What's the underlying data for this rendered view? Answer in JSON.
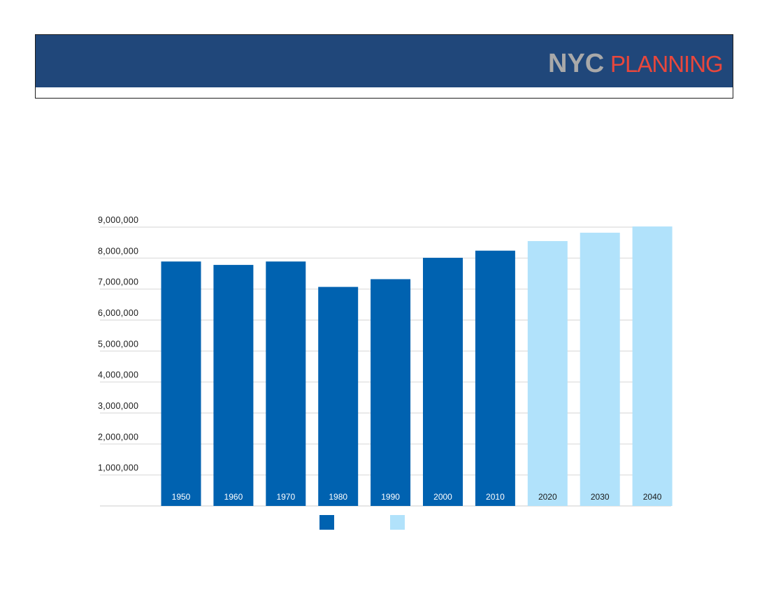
{
  "header": {
    "logo_text_bold": "NYC",
    "logo_text_light": "PLANNING",
    "logo_bold_color": "#a9a9a9",
    "logo_light_color": "#e8473c",
    "band_color": "#20477a"
  },
  "chart_data": {
    "type": "bar",
    "title": "",
    "xlabel": "",
    "ylabel": "",
    "categories": [
      "1950",
      "1960",
      "1970",
      "1980",
      "1990",
      "2000",
      "2010",
      "2020",
      "2030",
      "2040"
    ],
    "values": [
      7890000,
      7780000,
      7890000,
      7070000,
      7320000,
      8010000,
      8240000,
      8550000,
      8820000,
      9020000
    ],
    "projected": [
      false,
      false,
      false,
      false,
      false,
      false,
      false,
      true,
      true,
      true
    ],
    "colors": {
      "actual": "#0062b0",
      "projected": "#b1e2fb"
    },
    "ylim": [
      0,
      9000000
    ],
    "yticks": [
      1000000,
      2000000,
      3000000,
      4000000,
      5000000,
      6000000,
      7000000,
      8000000,
      9000000
    ],
    "ytick_labels": [
      "1,000,000",
      "2,000,000",
      "3,000,000",
      "4,000,000",
      "5,000,000",
      "6,000,000",
      "7,000,000",
      "8,000,000",
      "9,000,000"
    ],
    "grid": true,
    "legend": {
      "placement": "bottom-center",
      "entries": [
        {
          "name": "",
          "color": "#0062b0"
        },
        {
          "name": "",
          "color": "#b1e2fb"
        }
      ]
    }
  }
}
